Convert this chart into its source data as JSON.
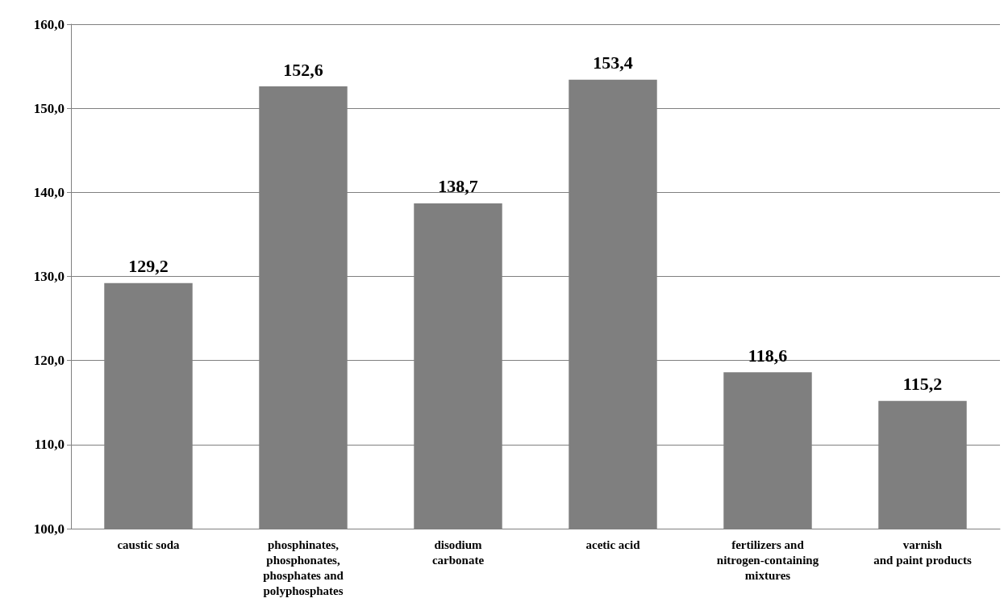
{
  "chart_data": {
    "type": "bar",
    "categories": [
      "caustic soda",
      "phosphinates,\nphosphonates,\nphosphates and\npolyphosphates",
      "disodium\ncarbonate",
      "acetic acid",
      "fertilizers and\nnitrogen-containing\nmixtures",
      "varnish\nand paint products"
    ],
    "values": [
      129.2,
      152.6,
      138.7,
      153.4,
      118.6,
      115.2
    ],
    "value_labels": [
      "129,2",
      "152,6",
      "138,7",
      "153,4",
      "118,6",
      "115,2"
    ],
    "color": "#7f7f7f",
    "ylim": [
      100,
      160
    ],
    "yticks": [
      {
        "value": 100,
        "label": "100,0"
      },
      {
        "value": 110,
        "label": "110,0"
      },
      {
        "value": 120,
        "label": "120,0"
      },
      {
        "value": 130,
        "label": "130,0"
      },
      {
        "value": 140,
        "label": "140,0"
      },
      {
        "value": 150,
        "label": "150,0"
      },
      {
        "value": 160,
        "label": "160,0"
      }
    ],
    "grid": "y"
  }
}
